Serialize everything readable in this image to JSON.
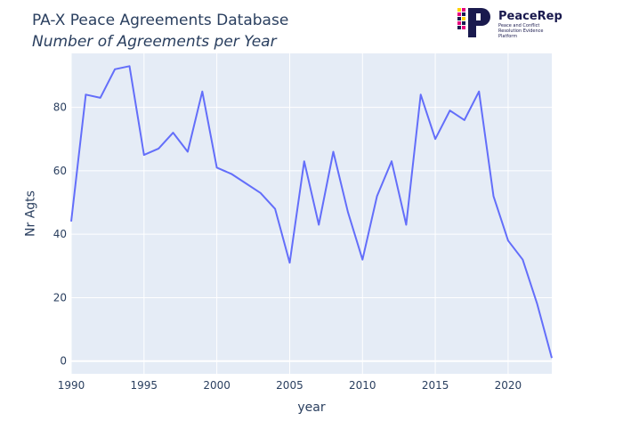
{
  "chart_data": {
    "type": "line",
    "title": "PA-X Peace Agreements Database",
    "subtitle": "Number of Agreements per Year",
    "xlabel": "year",
    "ylabel": "Nr Agts",
    "xlim": [
      1990,
      2023
    ],
    "ylim": [
      -4,
      97
    ],
    "xticks": [
      1990,
      1995,
      2000,
      2005,
      2010,
      2015,
      2020
    ],
    "yticks": [
      0,
      20,
      40,
      60,
      80
    ],
    "grid": true,
    "line_color": "#636efa",
    "background_color": "#e5ecf6",
    "x": [
      1990,
      1991,
      1992,
      1993,
      1994,
      1995,
      1996,
      1997,
      1998,
      1999,
      2000,
      2001,
      2002,
      2003,
      2004,
      2005,
      2006,
      2007,
      2008,
      2009,
      2010,
      2011,
      2012,
      2013,
      2014,
      2015,
      2016,
      2017,
      2018,
      2019,
      2020,
      2021,
      2022,
      2023
    ],
    "y": [
      44,
      84,
      83,
      92,
      93,
      65,
      67,
      72,
      66,
      85,
      61,
      59,
      56,
      53,
      48,
      31,
      63,
      43,
      66,
      47,
      32,
      52,
      63,
      43,
      84,
      70,
      79,
      76,
      85,
      52,
      38,
      32,
      18,
      1
    ]
  },
  "logo": {
    "name": "PeaceRep",
    "tagline": "Peace and Conflict Resolution Evidence Platform",
    "colors": [
      "#1a1a4e",
      "#e6007e",
      "#ffd200"
    ]
  }
}
